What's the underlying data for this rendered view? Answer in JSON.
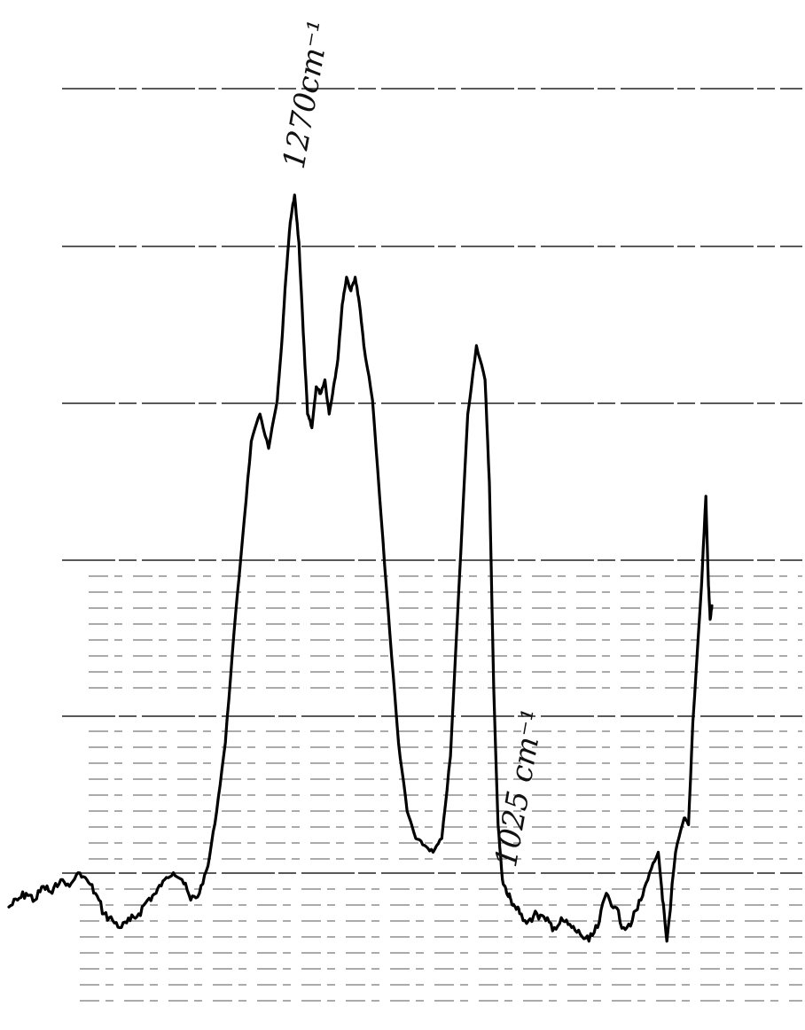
{
  "chart_data": {
    "type": "line",
    "title": "",
    "xlabel": "",
    "ylabel": "",
    "x_reversed": true,
    "grid": true,
    "annotations": [
      {
        "text": "1270cm⁻¹",
        "x": 1270
      },
      {
        "text": "1025 cm⁻¹",
        "x": 1025
      }
    ],
    "series": [
      {
        "x": [
          1600,
          1590,
          1580,
          1570,
          1560,
          1550,
          1540,
          1530,
          1520,
          1510,
          1500,
          1490,
          1480,
          1470,
          1460,
          1450,
          1440,
          1430,
          1420,
          1410,
          1400,
          1390,
          1380,
          1370,
          1360,
          1350,
          1340,
          1330,
          1320,
          1310,
          1300,
          1290,
          1285,
          1280,
          1275,
          1270,
          1265,
          1260,
          1255,
          1250,
          1245,
          1240,
          1235,
          1230,
          1225,
          1220,
          1215,
          1210,
          1205,
          1200,
          1195,
          1190,
          1180,
          1170,
          1160,
          1150,
          1140,
          1130,
          1120,
          1110,
          1100,
          1090,
          1080,
          1070,
          1060,
          1050,
          1045,
          1040,
          1035,
          1030,
          1025,
          1020,
          1015,
          1010,
          1000,
          990,
          980,
          970,
          960,
          950,
          940,
          930,
          920,
          910,
          900,
          890,
          880,
          870,
          860,
          850,
          845,
          840,
          830,
          820,
          815,
          810,
          800,
          795,
          792,
          790,
          788
        ],
        "y": [
          0.08,
          0.09,
          0.1,
          0.09,
          0.11,
          0.1,
          0.12,
          0.11,
          0.13,
          0.12,
          0.1,
          0.07,
          0.06,
          0.05,
          0.06,
          0.07,
          0.09,
          0.1,
          0.12,
          0.13,
          0.12,
          0.09,
          0.1,
          0.14,
          0.22,
          0.32,
          0.48,
          0.62,
          0.76,
          0.8,
          0.75,
          0.82,
          0.9,
          1.0,
          1.08,
          1.12,
          1.05,
          0.92,
          0.8,
          0.78,
          0.84,
          0.83,
          0.85,
          0.8,
          0.84,
          0.88,
          0.96,
          1.0,
          0.98,
          1.0,
          0.96,
          0.9,
          0.82,
          0.65,
          0.48,
          0.32,
          0.22,
          0.18,
          0.17,
          0.16,
          0.18,
          0.3,
          0.55,
          0.8,
          0.9,
          0.85,
          0.7,
          0.4,
          0.2,
          0.12,
          0.1,
          0.09,
          0.08,
          0.07,
          0.06,
          0.07,
          0.06,
          0.05,
          0.06,
          0.05,
          0.04,
          0.03,
          0.05,
          0.1,
          0.08,
          0.05,
          0.06,
          0.09,
          0.13,
          0.16,
          0.09,
          0.03,
          0.16,
          0.21,
          0.2,
          0.35,
          0.55,
          0.68,
          0.55,
          0.5,
          0.52
        ]
      }
    ]
  }
}
